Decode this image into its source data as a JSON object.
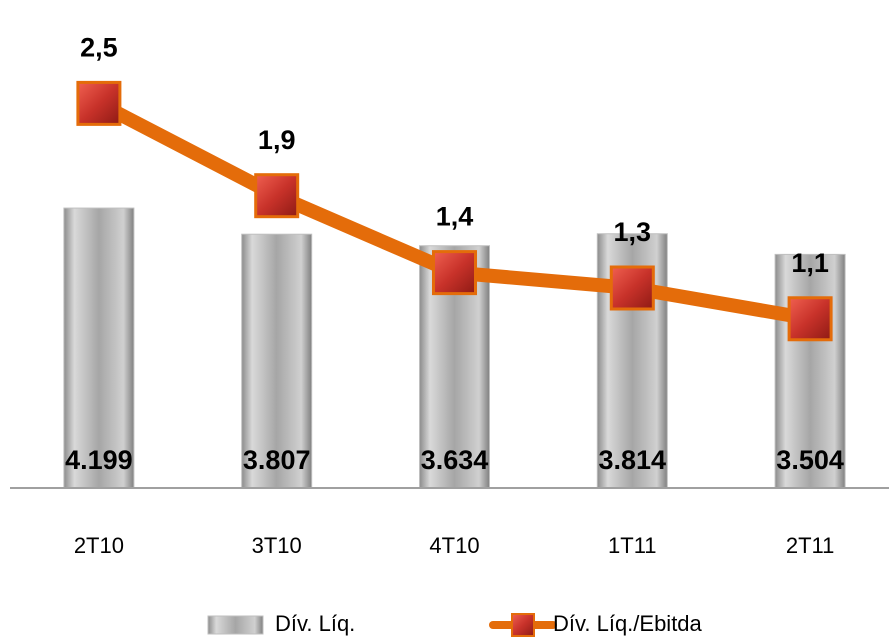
{
  "chart_data": {
    "type": "combo",
    "categories": [
      "2T10",
      "3T10",
      "4T10",
      "1T11",
      "2T11"
    ],
    "series": [
      {
        "name": "Dív. Líq.",
        "type": "bar",
        "color": "#a6a6a6",
        "values": [
          4199,
          3807,
          3634,
          3814,
          3504
        ],
        "value_labels": [
          "4.199",
          "3.807",
          "3.634",
          "3.814",
          "3.504"
        ]
      },
      {
        "name": "Dív. Líq./Ebitda",
        "type": "line",
        "axis": "y2",
        "color": "#e46c0a",
        "marker_color": "#c8322a",
        "values": [
          2.5,
          1.9,
          1.4,
          1.3,
          1.1
        ],
        "value_labels": [
          "2,5",
          "1,9",
          "1,4",
          "1,3",
          "1,1"
        ]
      }
    ],
    "ylim": [
      0,
      6000
    ],
    "y2lim": [
      0,
      2.6
    ],
    "legend": "bottom"
  }
}
